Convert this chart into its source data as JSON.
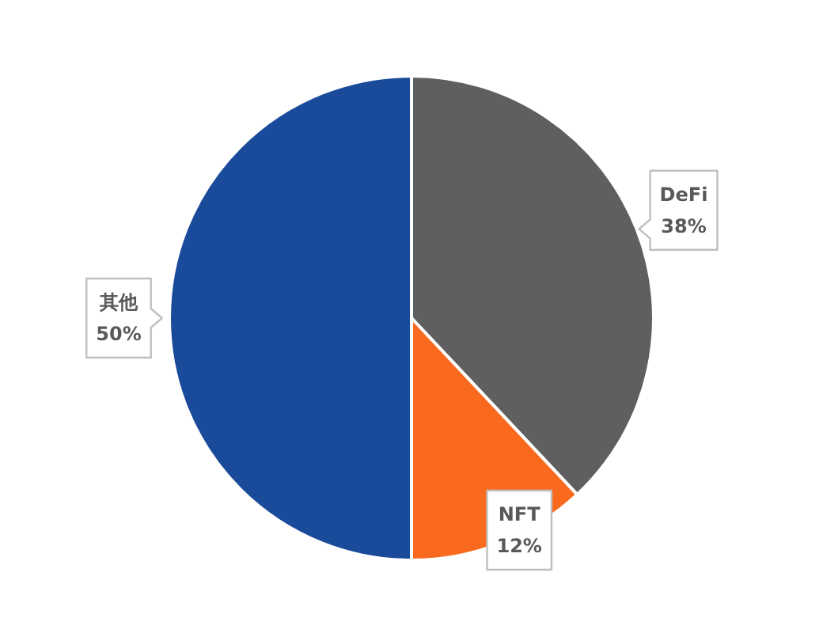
{
  "chart_data": {
    "type": "pie",
    "categories": [
      "DeFi",
      "NFT",
      "其他"
    ],
    "values": [
      38,
      12,
      50
    ],
    "colors": [
      "#5f5f5f",
      "#f96a1f",
      "#1a4a9a"
    ],
    "value_labels": [
      "38%",
      "12%",
      "50%"
    ]
  }
}
